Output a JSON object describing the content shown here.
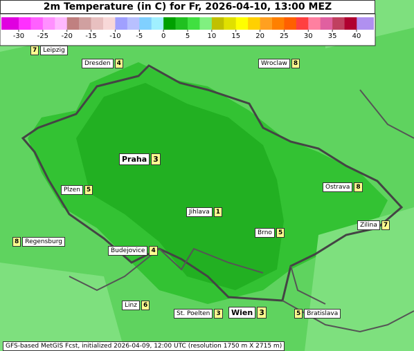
{
  "header": {
    "title": "2m Temperature (in C) for Fr, 2026-04-10, 13:00 MEZ"
  },
  "colorbar": {
    "range": [
      -30,
      40
    ],
    "ticks": [
      -30,
      -25,
      -20,
      -15,
      -10,
      -5,
      0,
      5,
      10,
      15,
      20,
      25,
      30,
      35,
      40
    ],
    "low_color": "#e000e0",
    "high_color": "#b090f0",
    "colors": [
      "#ff30ff",
      "#ff60ff",
      "#ff90ff",
      "#ffb8ff",
      "#c08080",
      "#d0a0a0",
      "#e8c0c0",
      "#f8d8d8",
      "#a0a0ff",
      "#b8c0ff",
      "#80d0ff",
      "#a0f0ff",
      "#00a000",
      "#20c020",
      "#40e040",
      "#80f080",
      "#c0c000",
      "#e0e000",
      "#ffff00",
      "#ffd000",
      "#ffa020",
      "#ff8000",
      "#ff6000",
      "#ff4040",
      "#ff80a0",
      "#e060a0",
      "#c04060",
      "#b00030"
    ]
  },
  "cities": [
    {
      "name": "Leipzig",
      "value": "7"
    },
    {
      "name": "Dresden",
      "value": "4"
    },
    {
      "name": "Wroclaw",
      "value": "8"
    },
    {
      "name": "Praha",
      "value": "3"
    },
    {
      "name": "Plzen",
      "value": "5"
    },
    {
      "name": "Ostrava",
      "value": "8"
    },
    {
      "name": "Jihlava",
      "value": "1"
    },
    {
      "name": "Zilina",
      "value": "7"
    },
    {
      "name": "Regensburg",
      "value": "8"
    },
    {
      "name": "Brno",
      "value": "5"
    },
    {
      "name": "Budejovice",
      "value": "4"
    },
    {
      "name": "Linz",
      "value": "6"
    },
    {
      "name": "St. Poelten",
      "value": "3"
    },
    {
      "name": "Wien",
      "value": "3"
    },
    {
      "name": "Bratislava",
      "value": "5"
    }
  ],
  "footer": {
    "text": "GFS-based MetGIS Fcst, initialized 2026-04-09, 12:00 UTC  (resolution 1750 m X 2715 m)"
  }
}
